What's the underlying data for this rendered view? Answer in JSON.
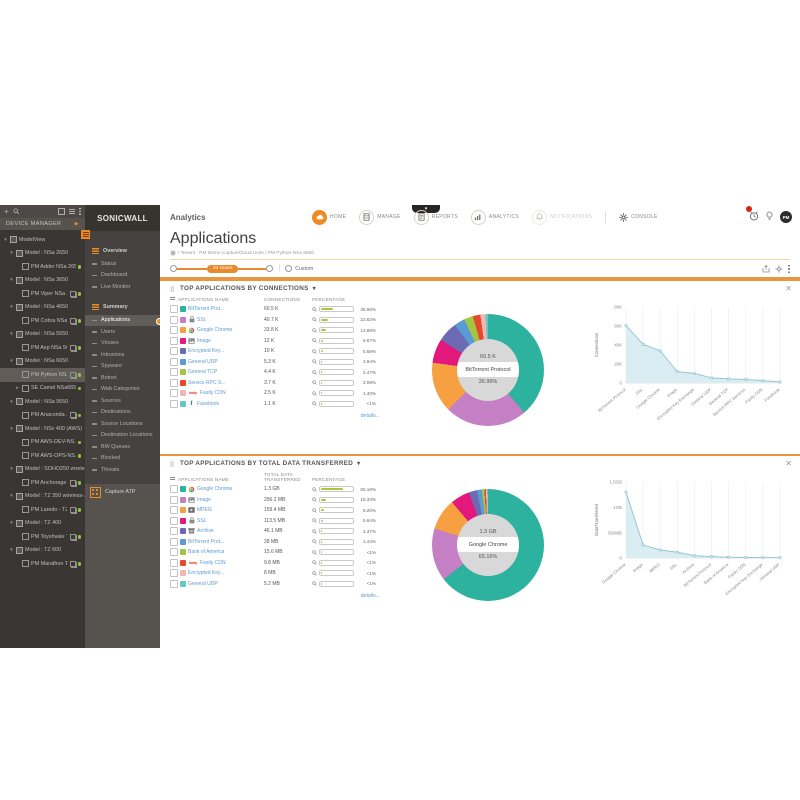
{
  "colors": {
    "accent": "#ef8a22",
    "panel_border": "#e9973f",
    "bar_fill": "#a8c93f",
    "link_blue": "#5b9bd5",
    "status_green": "#8ec63f",
    "area_fill": "#d9edf2",
    "area_line": "#8fc3cd",
    "badge_red": "#d9230f",
    "palette": [
      "#2eb2a0",
      "#c57fc5",
      "#f6a042",
      "#e2187d",
      "#6c6ab2",
      "#5b9bd5",
      "#a2c643",
      "#e4492c",
      "#f2b6b6",
      "#65c8c1"
    ]
  },
  "header": {
    "product": "Analytics",
    "avatar": "PM",
    "nav": [
      {
        "label": "HOME",
        "icon": "cloud",
        "active": true
      },
      {
        "label": "MANAGE",
        "icon": "server"
      },
      {
        "label": "REPORTS",
        "icon": "report"
      },
      {
        "label": "ANALYTICS",
        "icon": "analytics"
      },
      {
        "label": "NOTIFICATIONS",
        "icon": "bell",
        "disabled": true
      },
      {
        "label": "CONSOLE",
        "icon": "gear",
        "plain": true,
        "divider_before": true
      }
    ]
  },
  "page": {
    "title": "Applications",
    "breadcrumb": "/ Tenant - PM Demo CaptureCloud Units / PM Python NSa 6650"
  },
  "time_filter": {
    "range_label": "24 Hours",
    "custom_label": "Custom"
  },
  "device_tree": {
    "header": "DEVICE MANAGER",
    "items": [
      {
        "label": "ModelView",
        "lvl": 0,
        "caret": "down",
        "kind": "model"
      },
      {
        "label": "Model : NSa 2650",
        "lvl": 1,
        "caret": "down",
        "kind": "model"
      },
      {
        "label": "PM Adder NSa 2650",
        "lvl": 2,
        "kind": "unit",
        "dot": true
      },
      {
        "label": "Model : NSa 3650",
        "lvl": 1,
        "caret": "down",
        "kind": "model"
      },
      {
        "label": "PM Viper NSa 3...",
        "lvl": 2,
        "kind": "unit",
        "ha": true,
        "dot": true
      },
      {
        "label": "Model : NSa 4650",
        "lvl": 1,
        "caret": "down",
        "kind": "model"
      },
      {
        "label": "PM Cobra NSa ...",
        "lvl": 2,
        "kind": "unit",
        "ha": true,
        "dot": true
      },
      {
        "label": "Model : NSa 5650",
        "lvl": 1,
        "caret": "down",
        "kind": "model"
      },
      {
        "label": "PM Asp NSa 56...",
        "lvl": 2,
        "kind": "unit",
        "ha": true,
        "dot": true
      },
      {
        "label": "Model : NSa 6650",
        "lvl": 1,
        "caret": "down",
        "kind": "model"
      },
      {
        "label": "PM Python NSa...",
        "lvl": 2,
        "kind": "unit",
        "ha": true,
        "dot": true,
        "selected": true
      },
      {
        "label": "SE Camel NSa6650",
        "lvl": 2,
        "caret": "right",
        "kind": "unit",
        "dot": true
      },
      {
        "label": "Model : NSa 9650",
        "lvl": 1,
        "caret": "down",
        "kind": "model"
      },
      {
        "label": "PM Anaconda ...",
        "lvl": 2,
        "kind": "unit",
        "ha": true,
        "dot": true
      },
      {
        "label": "Model : NSv 400 (AWS)",
        "lvl": 1,
        "caret": "down",
        "kind": "model"
      },
      {
        "label": "PM AWS-DEV-NS...",
        "lvl": 2,
        "kind": "unit",
        "dot": true
      },
      {
        "label": "PM AWS-OPS-NS...",
        "lvl": 2,
        "kind": "unit",
        "dot": true
      },
      {
        "label": "Model : SOHO250 wirele...",
        "lvl": 1,
        "caret": "down",
        "kind": "model"
      },
      {
        "label": "PM Anchorage ...",
        "lvl": 2,
        "kind": "unit",
        "ha": true,
        "dot": true
      },
      {
        "label": "Model : TZ 350 wireless-...",
        "lvl": 1,
        "caret": "down",
        "kind": "model"
      },
      {
        "label": "PM Laredo - TZ...",
        "lvl": 2,
        "kind": "unit",
        "ha": true,
        "dot": true
      },
      {
        "label": "Model : TZ 400",
        "lvl": 1,
        "caret": "down",
        "kind": "model"
      },
      {
        "label": "PM Toyshvale T...",
        "lvl": 2,
        "kind": "unit",
        "ha": true,
        "dot": true
      },
      {
        "label": "Model : TZ 600",
        "lvl": 1,
        "caret": "down",
        "kind": "model"
      },
      {
        "label": "PM Marathon T...",
        "lvl": 2,
        "kind": "unit",
        "ha": true,
        "dot": true
      }
    ]
  },
  "menu": {
    "brand": "SONICWALL",
    "capture_atp": "Capture ATP",
    "items": [
      {
        "type": "section",
        "label": "Overview"
      },
      {
        "type": "item",
        "label": "Status"
      },
      {
        "type": "item",
        "label": "Dashboard"
      },
      {
        "type": "item",
        "label": "Live Monitor"
      },
      {
        "type": "section",
        "label": "Summary",
        "gap": true
      },
      {
        "type": "item",
        "label": "Applications",
        "active": true
      },
      {
        "type": "item",
        "label": "Users"
      },
      {
        "type": "item",
        "label": "Viruses"
      },
      {
        "type": "item",
        "label": "Intrusions"
      },
      {
        "type": "item",
        "label": "Spyware"
      },
      {
        "type": "item",
        "label": "Botnet"
      },
      {
        "type": "item",
        "label": "Web Categories"
      },
      {
        "type": "item",
        "label": "Sources"
      },
      {
        "type": "item",
        "label": "Destinations"
      },
      {
        "type": "item",
        "label": "Source Locations"
      },
      {
        "type": "item",
        "label": "Destination Locations"
      },
      {
        "type": "item",
        "label": "BW Queues"
      },
      {
        "type": "item",
        "label": "Blocked"
      },
      {
        "type": "item",
        "label": "Threats"
      }
    ]
  },
  "panels": [
    {
      "title": "TOP APPLICATIONS BY CONNECTIONS",
      "columns": [
        "APPLICATIONS NAME",
        "CONNECTIONS",
        "PERCENTAGE"
      ],
      "details_label": "details...",
      "rows": [
        {
          "name": "BitTorrent Prot...",
          "icon": null,
          "value": "60.5 K",
          "pct": "36.96%",
          "pct_num": 36.96
        },
        {
          "name": "SSL",
          "icon": "lock",
          "value": "40.7 K",
          "pct": "22.62%",
          "pct_num": 22.62
        },
        {
          "name": "Google Chrome",
          "icon": "chrome",
          "value": "33.8 K",
          "pct": "13.88%",
          "pct_num": 13.88
        },
        {
          "name": "Image",
          "icon": "image",
          "value": "12 K",
          "pct": "6.67%",
          "pct_num": 6.67
        },
        {
          "name": "Encrypted Key...",
          "icon": null,
          "value": "10 K",
          "pct": "5.58%",
          "pct_num": 5.58
        },
        {
          "name": "General UDP",
          "icon": null,
          "value": "5.3 K",
          "pct": "2.94%",
          "pct_num": 2.94
        },
        {
          "name": "General TCP",
          "icon": null,
          "value": "4.4 K",
          "pct": "2.47%",
          "pct_num": 2.47
        },
        {
          "name": "Service RPC S...",
          "icon": null,
          "value": "3.7 K",
          "pct": "2.08%",
          "pct_num": 2.08
        },
        {
          "name": "Fastly CDN",
          "icon": "fastly",
          "value": "2.5 K",
          "pct": "1.40%",
          "pct_num": 1.4
        },
        {
          "name": "Facebook",
          "icon": "facebook",
          "value": "1.1 K",
          "pct": "<1%",
          "pct_num": 0.7
        }
      ],
      "center": {
        "value": "60.5 K",
        "name": "BitTorrent Protocol",
        "pct": "36.96%"
      },
      "chart": {
        "type": "area",
        "ylabel": "Connections",
        "ymax": 80,
        "yticks": [
          {
            "v": 0,
            "l": "0"
          },
          {
            "v": 20,
            "l": "20K"
          },
          {
            "v": 40,
            "l": "40K"
          },
          {
            "v": 60,
            "l": "60K"
          },
          {
            "v": 80,
            "l": "80K"
          }
        ],
        "x": [
          "BitTorrent Protocol",
          "SSL",
          "Google Chrome",
          "Image",
          "Encrypted Key Exchange",
          "General UDP",
          "General TCP",
          "Service RPC Services",
          "Fastly CDN",
          "Facebook"
        ],
        "values": [
          60.5,
          40.7,
          33.8,
          12,
          10,
          5.3,
          4.4,
          3.7,
          2.5,
          1.1
        ]
      }
    },
    {
      "title": "TOP APPLICATIONS BY TOTAL DATA TRANSFERRED",
      "columns": [
        "APPLICATIONS NAME",
        "TOTAL DATA TRANSFERRED",
        "PERCENTAGE"
      ],
      "details_label": "details...",
      "rows": [
        {
          "name": "Google Chrome",
          "icon": "chrome",
          "value": "1.3 GB",
          "pct": "65.16%",
          "pct_num": 65.16
        },
        {
          "name": "Image",
          "icon": "image",
          "value": "256.2 MB",
          "pct": "15.33%",
          "pct_num": 15.33
        },
        {
          "name": "MPEG",
          "icon": "mpeg",
          "value": "159.4 MB",
          "pct": "9.20%",
          "pct_num": 9.2
        },
        {
          "name": "SSL",
          "icon": "lock",
          "value": "113.5 MB",
          "pct": "5.64%",
          "pct_num": 5.64
        },
        {
          "name": "Archive",
          "icon": "archive",
          "value": "46.1 MB",
          "pct": "2.37%",
          "pct_num": 2.37
        },
        {
          "name": "BitTorrent Prot...",
          "icon": null,
          "value": "28 MB",
          "pct": "1.44%",
          "pct_num": 1.44
        },
        {
          "name": "Bank of America",
          "icon": null,
          "value": "15.6 MB",
          "pct": "<1%",
          "pct_num": 0.72
        },
        {
          "name": "Fastly CDN",
          "icon": "fastly",
          "value": "9.8 MB",
          "pct": "<1%",
          "pct_num": 0.45
        },
        {
          "name": "Encrypted Key...",
          "icon": null,
          "value": "8 MB",
          "pct": "<1%",
          "pct_num": 0.37
        },
        {
          "name": "General UDP",
          "icon": null,
          "value": "5.2 MB",
          "pct": "<1%",
          "pct_num": 0.24
        }
      ],
      "center": {
        "value": "1.3 GB",
        "name": "Google Chrome",
        "pct": "65.16%"
      },
      "chart": {
        "type": "area",
        "ylabel": "DataTransferred",
        "ymax": 1500,
        "yticks": [
          {
            "v": 0,
            "l": "0"
          },
          {
            "v": 500,
            "l": "500MB"
          },
          {
            "v": 1000,
            "l": "1GB"
          },
          {
            "v": 1500,
            "l": "1.5GB"
          }
        ],
        "x": [
          "Google Chrome",
          "Image",
          "MPEG",
          "SSL",
          "Archive",
          "BitTorrent Protocol",
          "Bank of America",
          "Fastly CDN",
          "Encrypted Key Exchange",
          "General UDP"
        ],
        "values": [
          1300,
          256.2,
          159.4,
          113.5,
          46.1,
          28,
          15.6,
          9.8,
          8,
          5.2
        ]
      }
    }
  ]
}
